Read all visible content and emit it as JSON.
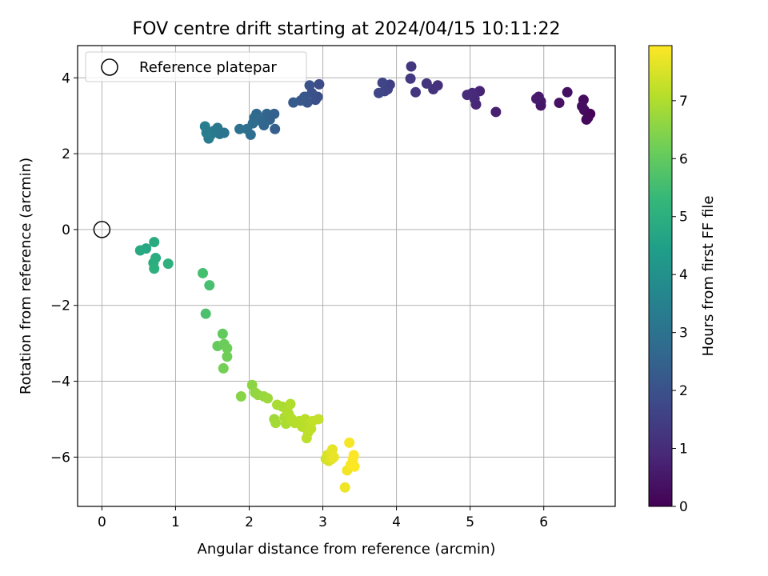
{
  "chart_data": {
    "type": "scatter",
    "title": "FOV centre drift starting at 2024/04/15 10:11:22",
    "xlabel": "Angular distance from reference (arcmin)",
    "ylabel": "Rotation from reference (arcmin)",
    "xlim": [
      -0.33,
      6.97
    ],
    "ylim": [
      -7.3,
      4.85
    ],
    "xticks": [
      0,
      1,
      2,
      3,
      4,
      5,
      6
    ],
    "xtick_labels": [
      "0",
      "1",
      "2",
      "3",
      "4",
      "5",
      "6"
    ],
    "yticks": [
      -6,
      -4,
      -2,
      0,
      2,
      4
    ],
    "ytick_labels": [
      "−6",
      "−4",
      "−2",
      "0",
      "2",
      "4"
    ],
    "grid": true,
    "legend": {
      "placement": "top-left",
      "entries": [
        {
          "label": "Reference platepar",
          "marker": "open-circle"
        }
      ]
    },
    "colorbar": {
      "label": "Hours from first FF file",
      "colormap": "viridis",
      "range": [
        0,
        7.95
      ],
      "ticks": [
        0,
        1,
        2,
        3,
        4,
        5,
        6,
        7
      ],
      "tick_labels": [
        "0",
        "1",
        "2",
        "3",
        "4",
        "5",
        "6",
        "7"
      ],
      "colors": [
        "#440154",
        "#482878",
        "#3e4989",
        "#31688e",
        "#26828e",
        "#1f9e89",
        "#35b779",
        "#6ece58",
        "#b5de2b",
        "#fde725"
      ]
    },
    "reference_point": {
      "x": 0,
      "y": 0
    },
    "series": [
      {
        "points": [
          {
            "x": 6.63,
            "y": 3.05,
            "h": 0.05
          },
          {
            "x": 6.6,
            "y": 2.95,
            "h": 0.1
          },
          {
            "x": 6.58,
            "y": 2.9,
            "h": 0.15
          },
          {
            "x": 6.55,
            "y": 3.15,
            "h": 0.2
          },
          {
            "x": 6.54,
            "y": 3.42,
            "h": 0.25
          },
          {
            "x": 6.52,
            "y": 3.25,
            "h": 0.3
          },
          {
            "x": 6.32,
            "y": 3.62,
            "h": 0.35
          },
          {
            "x": 6.21,
            "y": 3.34,
            "h": 0.4
          },
          {
            "x": 5.96,
            "y": 3.27,
            "h": 0.45
          },
          {
            "x": 5.96,
            "y": 3.38,
            "h": 0.5
          },
          {
            "x": 5.93,
            "y": 3.5,
            "h": 0.55
          },
          {
            "x": 5.9,
            "y": 3.45,
            "h": 0.6
          },
          {
            "x": 5.35,
            "y": 3.1,
            "h": 0.7
          },
          {
            "x": 5.13,
            "y": 3.65,
            "h": 0.8
          },
          {
            "x": 5.08,
            "y": 3.3,
            "h": 0.85
          },
          {
            "x": 5.06,
            "y": 3.45,
            "h": 0.9
          },
          {
            "x": 5.03,
            "y": 3.6,
            "h": 0.95
          },
          {
            "x": 4.96,
            "y": 3.55,
            "h": 1.0
          },
          {
            "x": 4.56,
            "y": 3.8,
            "h": 1.1
          },
          {
            "x": 4.5,
            "y": 3.7,
            "h": 1.15
          },
          {
            "x": 4.41,
            "y": 3.85,
            "h": 1.2
          },
          {
            "x": 4.26,
            "y": 3.62,
            "h": 1.25
          },
          {
            "x": 4.2,
            "y": 4.3,
            "h": 1.3
          },
          {
            "x": 4.19,
            "y": 3.98,
            "h": 1.35
          },
          {
            "x": 3.91,
            "y": 3.82,
            "h": 1.5
          },
          {
            "x": 3.88,
            "y": 3.7,
            "h": 1.55
          },
          {
            "x": 3.84,
            "y": 3.65,
            "h": 1.6
          },
          {
            "x": 3.81,
            "y": 3.87,
            "h": 1.65
          },
          {
            "x": 3.76,
            "y": 3.6,
            "h": 1.7
          },
          {
            "x": 2.95,
            "y": 3.83,
            "h": 1.85
          },
          {
            "x": 2.93,
            "y": 3.5,
            "h": 1.9
          },
          {
            "x": 2.9,
            "y": 3.42,
            "h": 1.95
          },
          {
            "x": 2.85,
            "y": 3.6,
            "h": 2.0
          },
          {
            "x": 2.82,
            "y": 3.8,
            "h": 2.05
          },
          {
            "x": 2.79,
            "y": 3.35,
            "h": 2.1
          },
          {
            "x": 2.75,
            "y": 3.5,
            "h": 2.15
          },
          {
            "x": 2.7,
            "y": 3.4,
            "h": 2.2
          },
          {
            "x": 2.6,
            "y": 3.35,
            "h": 2.25
          },
          {
            "x": 2.35,
            "y": 2.65,
            "h": 2.4
          },
          {
            "x": 2.34,
            "y": 3.05,
            "h": 2.45
          },
          {
            "x": 2.28,
            "y": 2.9,
            "h": 2.5
          },
          {
            "x": 2.24,
            "y": 3.05,
            "h": 2.55
          },
          {
            "x": 2.2,
            "y": 2.75,
            "h": 2.6
          },
          {
            "x": 2.15,
            "y": 2.88,
            "h": 2.65
          },
          {
            "x": 2.1,
            "y": 3.05,
            "h": 2.7
          },
          {
            "x": 2.07,
            "y": 2.95,
            "h": 2.75
          },
          {
            "x": 2.05,
            "y": 2.8,
            "h": 2.8
          },
          {
            "x": 2.02,
            "y": 2.5,
            "h": 2.85
          },
          {
            "x": 1.97,
            "y": 2.65,
            "h": 2.9
          },
          {
            "x": 1.87,
            "y": 2.65,
            "h": 2.95
          },
          {
            "x": 1.66,
            "y": 2.55,
            "h": 3.05
          },
          {
            "x": 1.6,
            "y": 2.52,
            "h": 3.1
          },
          {
            "x": 1.57,
            "y": 2.68,
            "h": 3.15
          },
          {
            "x": 1.52,
            "y": 2.6,
            "h": 3.2
          },
          {
            "x": 1.48,
            "y": 2.5,
            "h": 3.25
          },
          {
            "x": 1.45,
            "y": 2.4,
            "h": 3.3
          },
          {
            "x": 1.42,
            "y": 2.55,
            "h": 3.35
          },
          {
            "x": 1.4,
            "y": 2.72,
            "h": 3.4
          },
          {
            "x": 0.6,
            "y": -0.5,
            "h": 4.75
          },
          {
            "x": 0.52,
            "y": -0.55,
            "h": 4.8
          },
          {
            "x": 0.71,
            "y": -0.33,
            "h": 4.85
          },
          {
            "x": 0.73,
            "y": -0.75,
            "h": 4.9
          },
          {
            "x": 0.7,
            "y": -0.88,
            "h": 4.95
          },
          {
            "x": 0.71,
            "y": -1.03,
            "h": 5.0
          },
          {
            "x": 0.9,
            "y": -0.9,
            "h": 5.05
          },
          {
            "x": 1.37,
            "y": -1.15,
            "h": 5.55
          },
          {
            "x": 1.46,
            "y": -1.47,
            "h": 5.6
          },
          {
            "x": 1.41,
            "y": -2.22,
            "h": 5.65
          },
          {
            "x": 1.64,
            "y": -2.75,
            "h": 6.0
          },
          {
            "x": 1.57,
            "y": -3.07,
            "h": 6.05
          },
          {
            "x": 1.66,
            "y": -3.02,
            "h": 6.1
          },
          {
            "x": 1.7,
            "y": -3.13,
            "h": 6.15
          },
          {
            "x": 1.7,
            "y": -3.35,
            "h": 6.2
          },
          {
            "x": 1.65,
            "y": -3.66,
            "h": 6.25
          },
          {
            "x": 1.89,
            "y": -4.4,
            "h": 6.5
          },
          {
            "x": 2.04,
            "y": -4.1,
            "h": 6.55
          },
          {
            "x": 2.08,
            "y": -4.3,
            "h": 6.6
          },
          {
            "x": 2.12,
            "y": -4.36,
            "h": 6.65
          },
          {
            "x": 2.2,
            "y": -4.4,
            "h": 6.7
          },
          {
            "x": 2.25,
            "y": -4.45,
            "h": 6.75
          },
          {
            "x": 2.34,
            "y": -5.0,
            "h": 6.8
          },
          {
            "x": 2.36,
            "y": -5.1,
            "h": 6.85
          },
          {
            "x": 2.38,
            "y": -4.62,
            "h": 6.9
          },
          {
            "x": 2.45,
            "y": -4.67,
            "h": 6.92
          },
          {
            "x": 2.48,
            "y": -4.95,
            "h": 6.94
          },
          {
            "x": 2.5,
            "y": -5.12,
            "h": 6.96
          },
          {
            "x": 2.52,
            "y": -4.8,
            "h": 6.98
          },
          {
            "x": 2.54,
            "y": -4.88,
            "h": 7.0
          },
          {
            "x": 2.56,
            "y": -4.6,
            "h": 7.02
          },
          {
            "x": 2.58,
            "y": -5.0,
            "h": 7.04
          },
          {
            "x": 2.62,
            "y": -5.1,
            "h": 7.06
          },
          {
            "x": 2.68,
            "y": -5.05,
            "h": 7.08
          },
          {
            "x": 2.72,
            "y": -5.2,
            "h": 7.1
          },
          {
            "x": 2.76,
            "y": -5.0,
            "h": 7.12
          },
          {
            "x": 2.78,
            "y": -5.5,
            "h": 7.14
          },
          {
            "x": 2.8,
            "y": -5.35,
            "h": 7.16
          },
          {
            "x": 2.82,
            "y": -5.1,
            "h": 7.18
          },
          {
            "x": 2.84,
            "y": -5.25,
            "h": 7.2
          },
          {
            "x": 2.86,
            "y": -5.05,
            "h": 7.22
          },
          {
            "x": 2.94,
            "y": -5.0,
            "h": 7.25
          },
          {
            "x": 3.04,
            "y": -6.05,
            "h": 7.4
          },
          {
            "x": 3.06,
            "y": -5.95,
            "h": 7.45
          },
          {
            "x": 3.08,
            "y": -6.1,
            "h": 7.5
          },
          {
            "x": 3.1,
            "y": -5.9,
            "h": 7.55
          },
          {
            "x": 3.12,
            "y": -6.05,
            "h": 7.6
          },
          {
            "x": 3.13,
            "y": -5.8,
            "h": 7.65
          },
          {
            "x": 3.15,
            "y": -6.0,
            "h": 7.7
          },
          {
            "x": 3.3,
            "y": -6.8,
            "h": 7.75
          },
          {
            "x": 3.33,
            "y": -6.35,
            "h": 7.8
          },
          {
            "x": 3.36,
            "y": -5.62,
            "h": 7.85
          },
          {
            "x": 3.38,
            "y": -6.2,
            "h": 7.88
          },
          {
            "x": 3.41,
            "y": -6.05,
            "h": 7.9
          },
          {
            "x": 3.42,
            "y": -5.95,
            "h": 7.92
          },
          {
            "x": 3.43,
            "y": -6.25,
            "h": 7.94
          }
        ]
      }
    ]
  }
}
